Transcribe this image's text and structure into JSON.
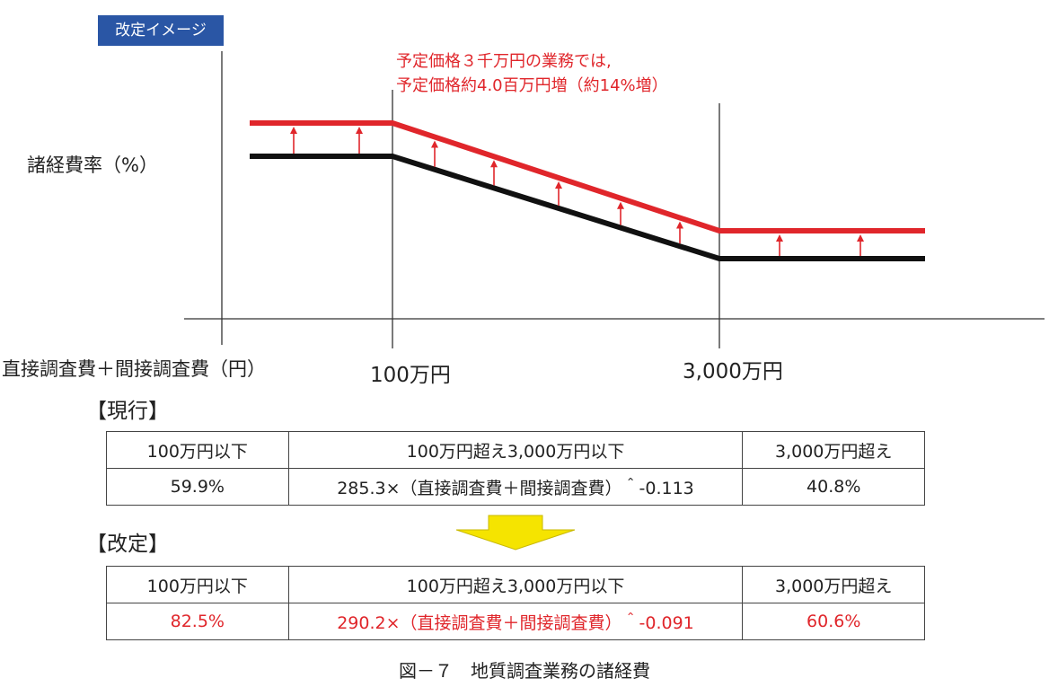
{
  "badge": "改定イメージ",
  "annotation": "予定価格３千万円の業務では,\n予定価格約4.0百万円増（約14%増）",
  "chart_data": {
    "type": "line",
    "ylabel": "諸経費率（%）",
    "xlabel": "直接調査費＋間接調査費（円）",
    "x_ticks": [
      "100万円",
      "3,000万円"
    ],
    "series": [
      {
        "name": "現行",
        "color": "#111111"
      },
      {
        "name": "改定",
        "color": "#e0262b"
      }
    ]
  },
  "tables": {
    "current": {
      "title": "【現行】",
      "headers": [
        "100万円以下",
        "100万円超え3,000万円以下",
        "3,000万円超え"
      ],
      "values": [
        "59.9%",
        "285.3×（直接調査費＋間接調査費）＾-0.113",
        "40.8%"
      ]
    },
    "revised": {
      "title": "【改定】",
      "headers": [
        "100万円以下",
        "100万円超え3,000万円以下",
        "3,000万円超え"
      ],
      "values": [
        "82.5%",
        "290.2×（直接調査費＋間接調査費）＾-0.091",
        "60.6%"
      ]
    }
  },
  "caption": "図－７　地質調査業務の諸経費",
  "colors": {
    "accent_red": "#e0262b",
    "badge_blue": "#2a56a5",
    "arrow_yellow": "#f5e400"
  }
}
